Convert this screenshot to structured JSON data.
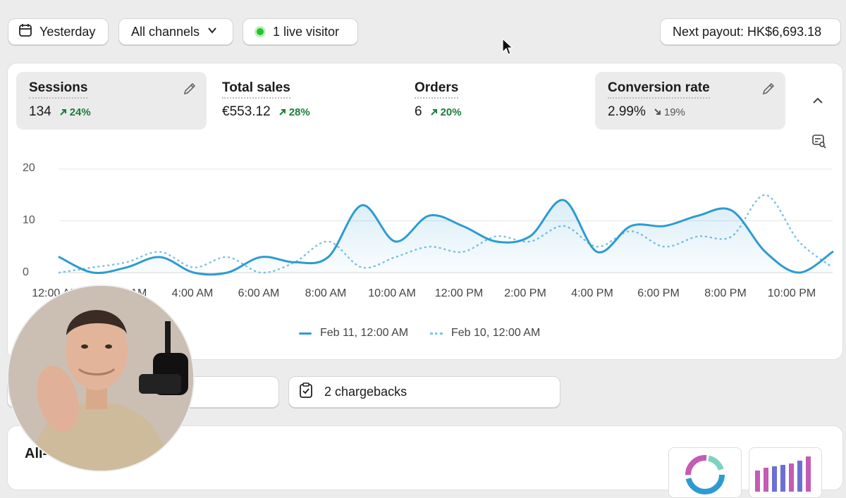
{
  "toolbar": {
    "date_label": "Yesterday",
    "channels_label": "All channels",
    "live_label": "1 live visitor",
    "payout_label": "Next payout: HK$6,693.18"
  },
  "metrics": [
    {
      "title": "Sessions",
      "value": "134",
      "delta": "24%",
      "direction": "up"
    },
    {
      "title": "Total sales",
      "value": "€553.12",
      "delta": "28%",
      "direction": "up"
    },
    {
      "title": "Orders",
      "value": "6",
      "delta": "20%",
      "direction": "up"
    },
    {
      "title": "Conversion rate",
      "value": "2.99%",
      "delta": "19%",
      "direction": "down"
    }
  ],
  "chart_data": {
    "type": "line",
    "x_ticks": [
      "12:00 AM",
      "2:00 AM",
      "4:00 AM",
      "6:00 AM",
      "8:00 AM",
      "10:00 AM",
      "12:00 PM",
      "2:00 PM",
      "4:00 PM",
      "6:00 PM",
      "8:00 PM",
      "10:00 PM"
    ],
    "y_ticks": [
      "20",
      "10",
      "0"
    ],
    "ylim": [
      0,
      20
    ],
    "hours": [
      0,
      1,
      2,
      3,
      4,
      5,
      6,
      7,
      8,
      9,
      10,
      11,
      12,
      13,
      14,
      15,
      16,
      17,
      18,
      19,
      20,
      21,
      22,
      23
    ],
    "series": [
      {
        "name": "Feb 11, 12:00 AM",
        "color": "#2d9bd2",
        "style": "solid",
        "values": [
          3,
          0,
          1,
          3,
          0,
          0,
          3,
          2,
          3,
          13,
          6,
          11,
          9,
          6,
          7,
          14,
          4,
          9,
          9,
          11,
          12,
          4,
          0,
          4
        ]
      },
      {
        "name": "Feb 10, 12:00 AM",
        "color": "#7cc3e2",
        "style": "dotted",
        "values": [
          0,
          1,
          2,
          4,
          1,
          3,
          0,
          2,
          6,
          1,
          3,
          5,
          4,
          7,
          6,
          9,
          5,
          8,
          5,
          7,
          7,
          15,
          6,
          1
        ]
      }
    ],
    "grid": true,
    "legend_position": "bottom-center"
  },
  "bottom": {
    "chargebacks_label": "2 chargebacks",
    "section_title": "All-"
  },
  "colors": {
    "accent": "#2d9bd2",
    "positive": "#1b7d3a",
    "live_dot": "#22c52b"
  }
}
